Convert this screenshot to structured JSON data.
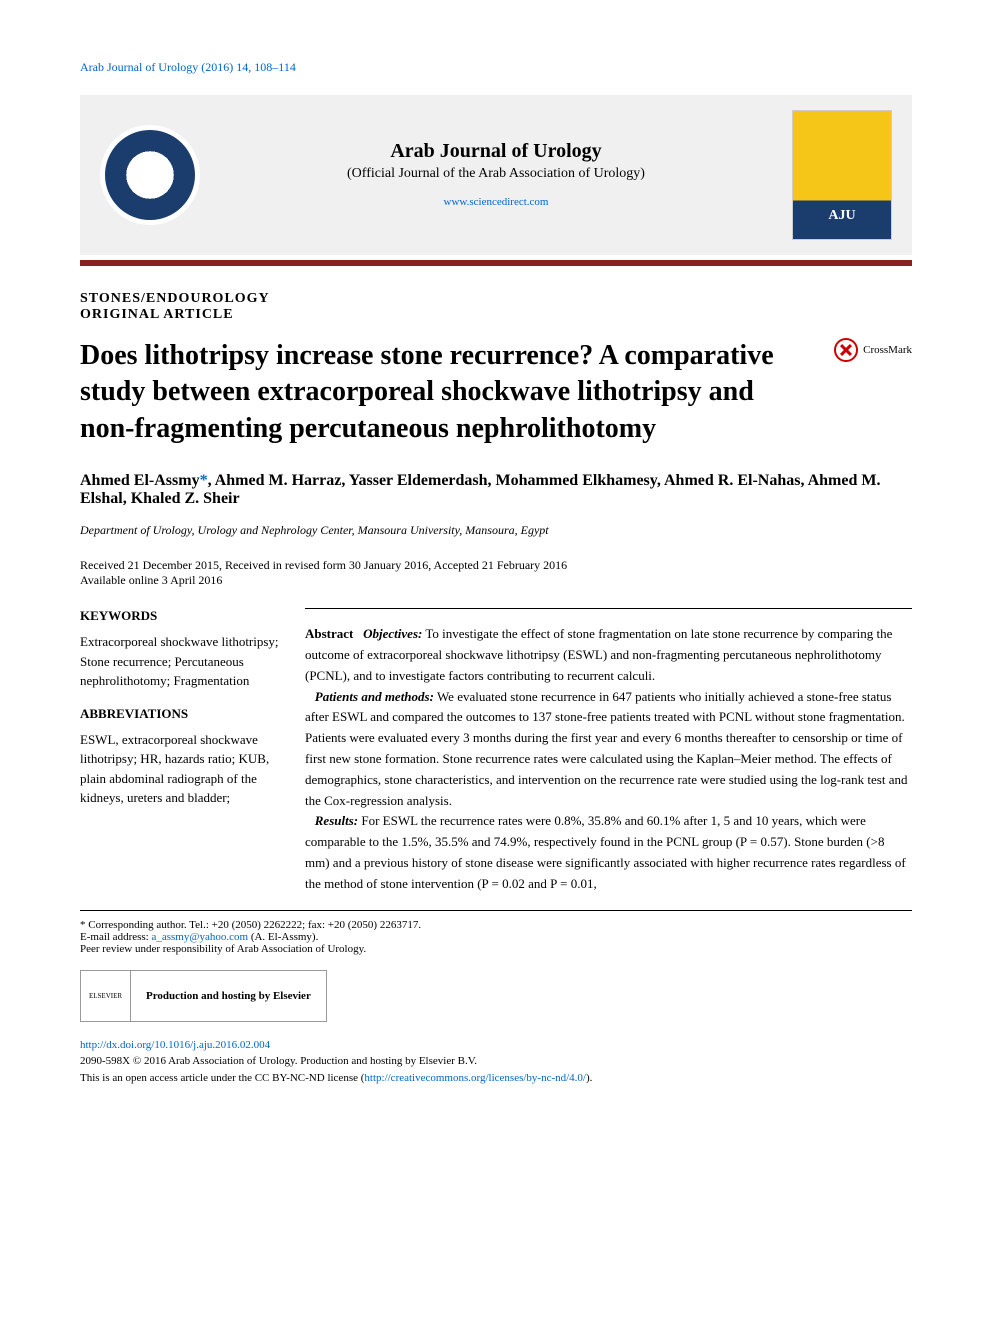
{
  "top_citation": "Arab Journal of Urology (2016) 14, 108–114",
  "header": {
    "journal_title": "Arab Journal of Urology",
    "journal_subtitle": "(Official Journal of the Arab Association of Urology)",
    "journal_link": "www.sciencedirect.com"
  },
  "article_type_line1": "STONES/ENDOUROLOGY",
  "article_type_line2": "ORIGINAL ARTICLE",
  "title": "Does lithotripsy increase stone recurrence? A comparative study between extracorporeal shockwave lithotripsy and non-fragmenting percutaneous nephrolithotomy",
  "crossmark_label": "CrossMark",
  "authors_part1": "Ahmed El-Assmy",
  "authors_asterisk": "*",
  "authors_part2": ", Ahmed M. Harraz, Yasser Eldemerdash, Mohammed Elkhamesy, Ahmed R. El-Nahas, Ahmed M. Elshal, Khaled Z. Sheir",
  "affiliation": "Department of Urology, Urology and Nephrology Center, Mansoura University, Mansoura, Egypt",
  "dates_line1": "Received 21 December 2015, Received in revised form 30 January 2016, Accepted 21 February 2016",
  "dates_line2": "Available online 3 April 2016",
  "keywords_heading": "KEYWORDS",
  "keywords_text": "Extracorporeal shockwave lithotripsy; Stone recurrence; Percutaneous nephrolithotomy; Fragmentation",
  "abbreviations_heading": "ABBREVIATIONS",
  "abbreviations_text": "ESWL, extracorporeal shockwave lithotripsy; HR, hazards ratio; KUB, plain abdominal radiograph of the kidneys, ureters and bladder;",
  "abstract": {
    "label": "Abstract",
    "objectives_label": "Objectives:",
    "objectives_text": " To investigate the effect of stone fragmentation on late stone recurrence by comparing the outcome of extracorporeal shockwave lithotripsy (ESWL) and non-fragmenting percutaneous nephrolithotomy (PCNL), and to investigate factors contributing to recurrent calculi.",
    "methods_label": "Patients and methods:",
    "methods_text": " We evaluated stone recurrence in 647 patients who initially achieved a stone-free status after ESWL and compared the outcomes to 137 stone-free patients treated with PCNL without stone fragmentation. Patients were evaluated every 3 months during the first year and every 6 months thereafter to censorship or time of first new stone formation. Stone recurrence rates were calculated using the Kaplan–Meier method. The effects of demographics, stone characteristics, and intervention on the recurrence rate were studied using the log-rank test and the Cox-regression analysis.",
    "results_label": "Results:",
    "results_text": " For ESWL the recurrence rates were 0.8%, 35.8% and 60.1% after 1, 5 and 10 years, which were comparable to the 1.5%, 35.5% and 74.9%, respectively found in the PCNL group (P = 0.57). Stone burden (>8 mm) and a previous history of stone disease were significantly associated with higher recurrence rates regardless of the method of stone intervention (P = 0.02 and P = 0.01,"
  },
  "corresponding": "* Corresponding author. Tel.: +20 (2050) 2262222; fax: +20 (2050) 2263717.",
  "email_label": "E-mail address: ",
  "email_link": "a_assmy@yahoo.com",
  "email_suffix": " (A. El-Assmy).",
  "peer_review": "Peer review under responsibility of Arab Association of Urology.",
  "elsevier_logo_text": "ELSEVIER",
  "elsevier_hosting": "Production and hosting by Elsevier",
  "doi_link": "http://dx.doi.org/10.1016/j.aju.2016.02.004",
  "issn_line": "2090-598X © 2016 Arab Association of Urology. Production and hosting by Elsevier B.V.",
  "license_prefix": "This is an open access article under the CC BY-NC-ND license (",
  "license_link": "http://creativecommons.org/licenses/by-nc-nd/4.0/",
  "license_suffix": ").",
  "colors": {
    "link": "#0066cc",
    "red_bar": "#8b2020",
    "header_bg": "#f0f0f0"
  }
}
